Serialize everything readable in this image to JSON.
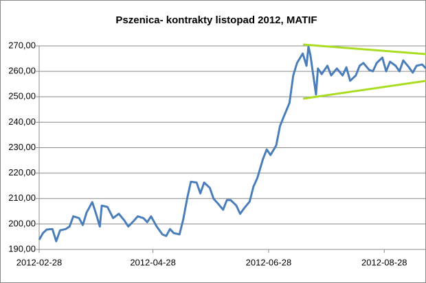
{
  "chart_data": {
    "type": "line",
    "title": "Pszenica- kontrakty listopad 2012, MATIF",
    "x": [
      "2012-02-28",
      "2012-03-01",
      "2012-03-03",
      "2012-03-06",
      "2012-03-08",
      "2012-03-10",
      "2012-03-13",
      "2012-03-15",
      "2012-03-17",
      "2012-03-20",
      "2012-03-22",
      "2012-03-24",
      "2012-03-27",
      "2012-03-29",
      "2012-03-31",
      "2012-04-01",
      "2012-04-04",
      "2012-04-07",
      "2012-04-10",
      "2012-04-13",
      "2012-04-15",
      "2012-04-18",
      "2012-04-20",
      "2012-04-23",
      "2012-04-25",
      "2012-04-27",
      "2012-04-30",
      "2012-05-03",
      "2012-05-05",
      "2012-05-07",
      "2012-05-09",
      "2012-05-12",
      "2012-05-14",
      "2012-05-16",
      "2012-05-18",
      "2012-05-21",
      "2012-05-23",
      "2012-05-25",
      "2012-05-28",
      "2012-05-30",
      "2012-06-01",
      "2012-06-04",
      "2012-06-06",
      "2012-06-08",
      "2012-06-11",
      "2012-06-13",
      "2012-06-15",
      "2012-06-18",
      "2012-06-20",
      "2012-06-22",
      "2012-06-25",
      "2012-06-27",
      "2012-06-29",
      "2012-07-02",
      "2012-07-04",
      "2012-07-06",
      "2012-07-09",
      "2012-07-11",
      "2012-07-13",
      "2012-07-16",
      "2012-07-18",
      "2012-07-19",
      "2012-07-20",
      "2012-07-23",
      "2012-07-24",
      "2012-07-26",
      "2012-07-29",
      "2012-07-31",
      "2012-08-03",
      "2012-08-06",
      "2012-08-08",
      "2012-08-10",
      "2012-08-13",
      "2012-08-15",
      "2012-08-17",
      "2012-08-20",
      "2012-08-22",
      "2012-08-24",
      "2012-08-27",
      "2012-08-29",
      "2012-08-31",
      "2012-09-03",
      "2012-09-05",
      "2012-09-07",
      "2012-09-10",
      "2012-09-12",
      "2012-09-14",
      "2012-09-17",
      "2012-09-19"
    ],
    "series": [
      {
        "color": "#4a7ebb",
        "values": [
          193.8,
          196.4,
          197.8,
          198,
          193.2,
          197.5,
          198,
          199,
          203,
          202.3,
          199.6,
          204.5,
          208.6,
          204,
          199,
          207.2,
          206.7,
          202.3,
          204,
          201.3,
          199,
          201.3,
          203,
          202.3,
          200.7,
          203,
          199,
          195.9,
          195.3,
          198,
          196.4,
          195.9,
          201.8,
          209.9,
          216.6,
          216.3,
          212,
          216.3,
          214.2,
          209.9,
          208.3,
          205.6,
          209.4,
          209.4,
          207.2,
          204,
          206.1,
          208.8,
          214.7,
          218,
          225.5,
          229.3,
          227.1,
          230.9,
          238.5,
          242.2,
          247.6,
          258.4,
          263.3,
          267,
          262.2,
          269.7,
          266.5,
          250.9,
          261.1,
          258.9,
          262.2,
          258.4,
          261.1,
          258.4,
          261.6,
          256.3,
          258.4,
          262.2,
          263.3,
          260.6,
          260,
          263.3,
          265.4,
          260,
          263.8,
          262.2,
          260,
          264.3,
          261.6,
          259.5,
          262.2,
          262.7,
          261.1
        ]
      }
    ],
    "xlim": [
      "2012-02-28",
      "2012-09-19"
    ],
    "xticks": [
      "2012-02-28",
      "2012-04-28",
      "2012-06-28",
      "2012-08-28"
    ],
    "ylim": [
      190,
      270
    ],
    "yticks": [
      {
        "value": 190,
        "label": "190,00"
      },
      {
        "value": 200,
        "label": "200,00"
      },
      {
        "value": 210,
        "label": "210,00"
      },
      {
        "value": 220,
        "label": "220,00"
      },
      {
        "value": 230,
        "label": "230,00"
      },
      {
        "value": 240,
        "label": "240,00"
      },
      {
        "value": 250,
        "label": "250,00"
      },
      {
        "value": 260,
        "label": "260,00"
      },
      {
        "value": 270,
        "label": "270,00"
      }
    ],
    "grid": true
  }
}
